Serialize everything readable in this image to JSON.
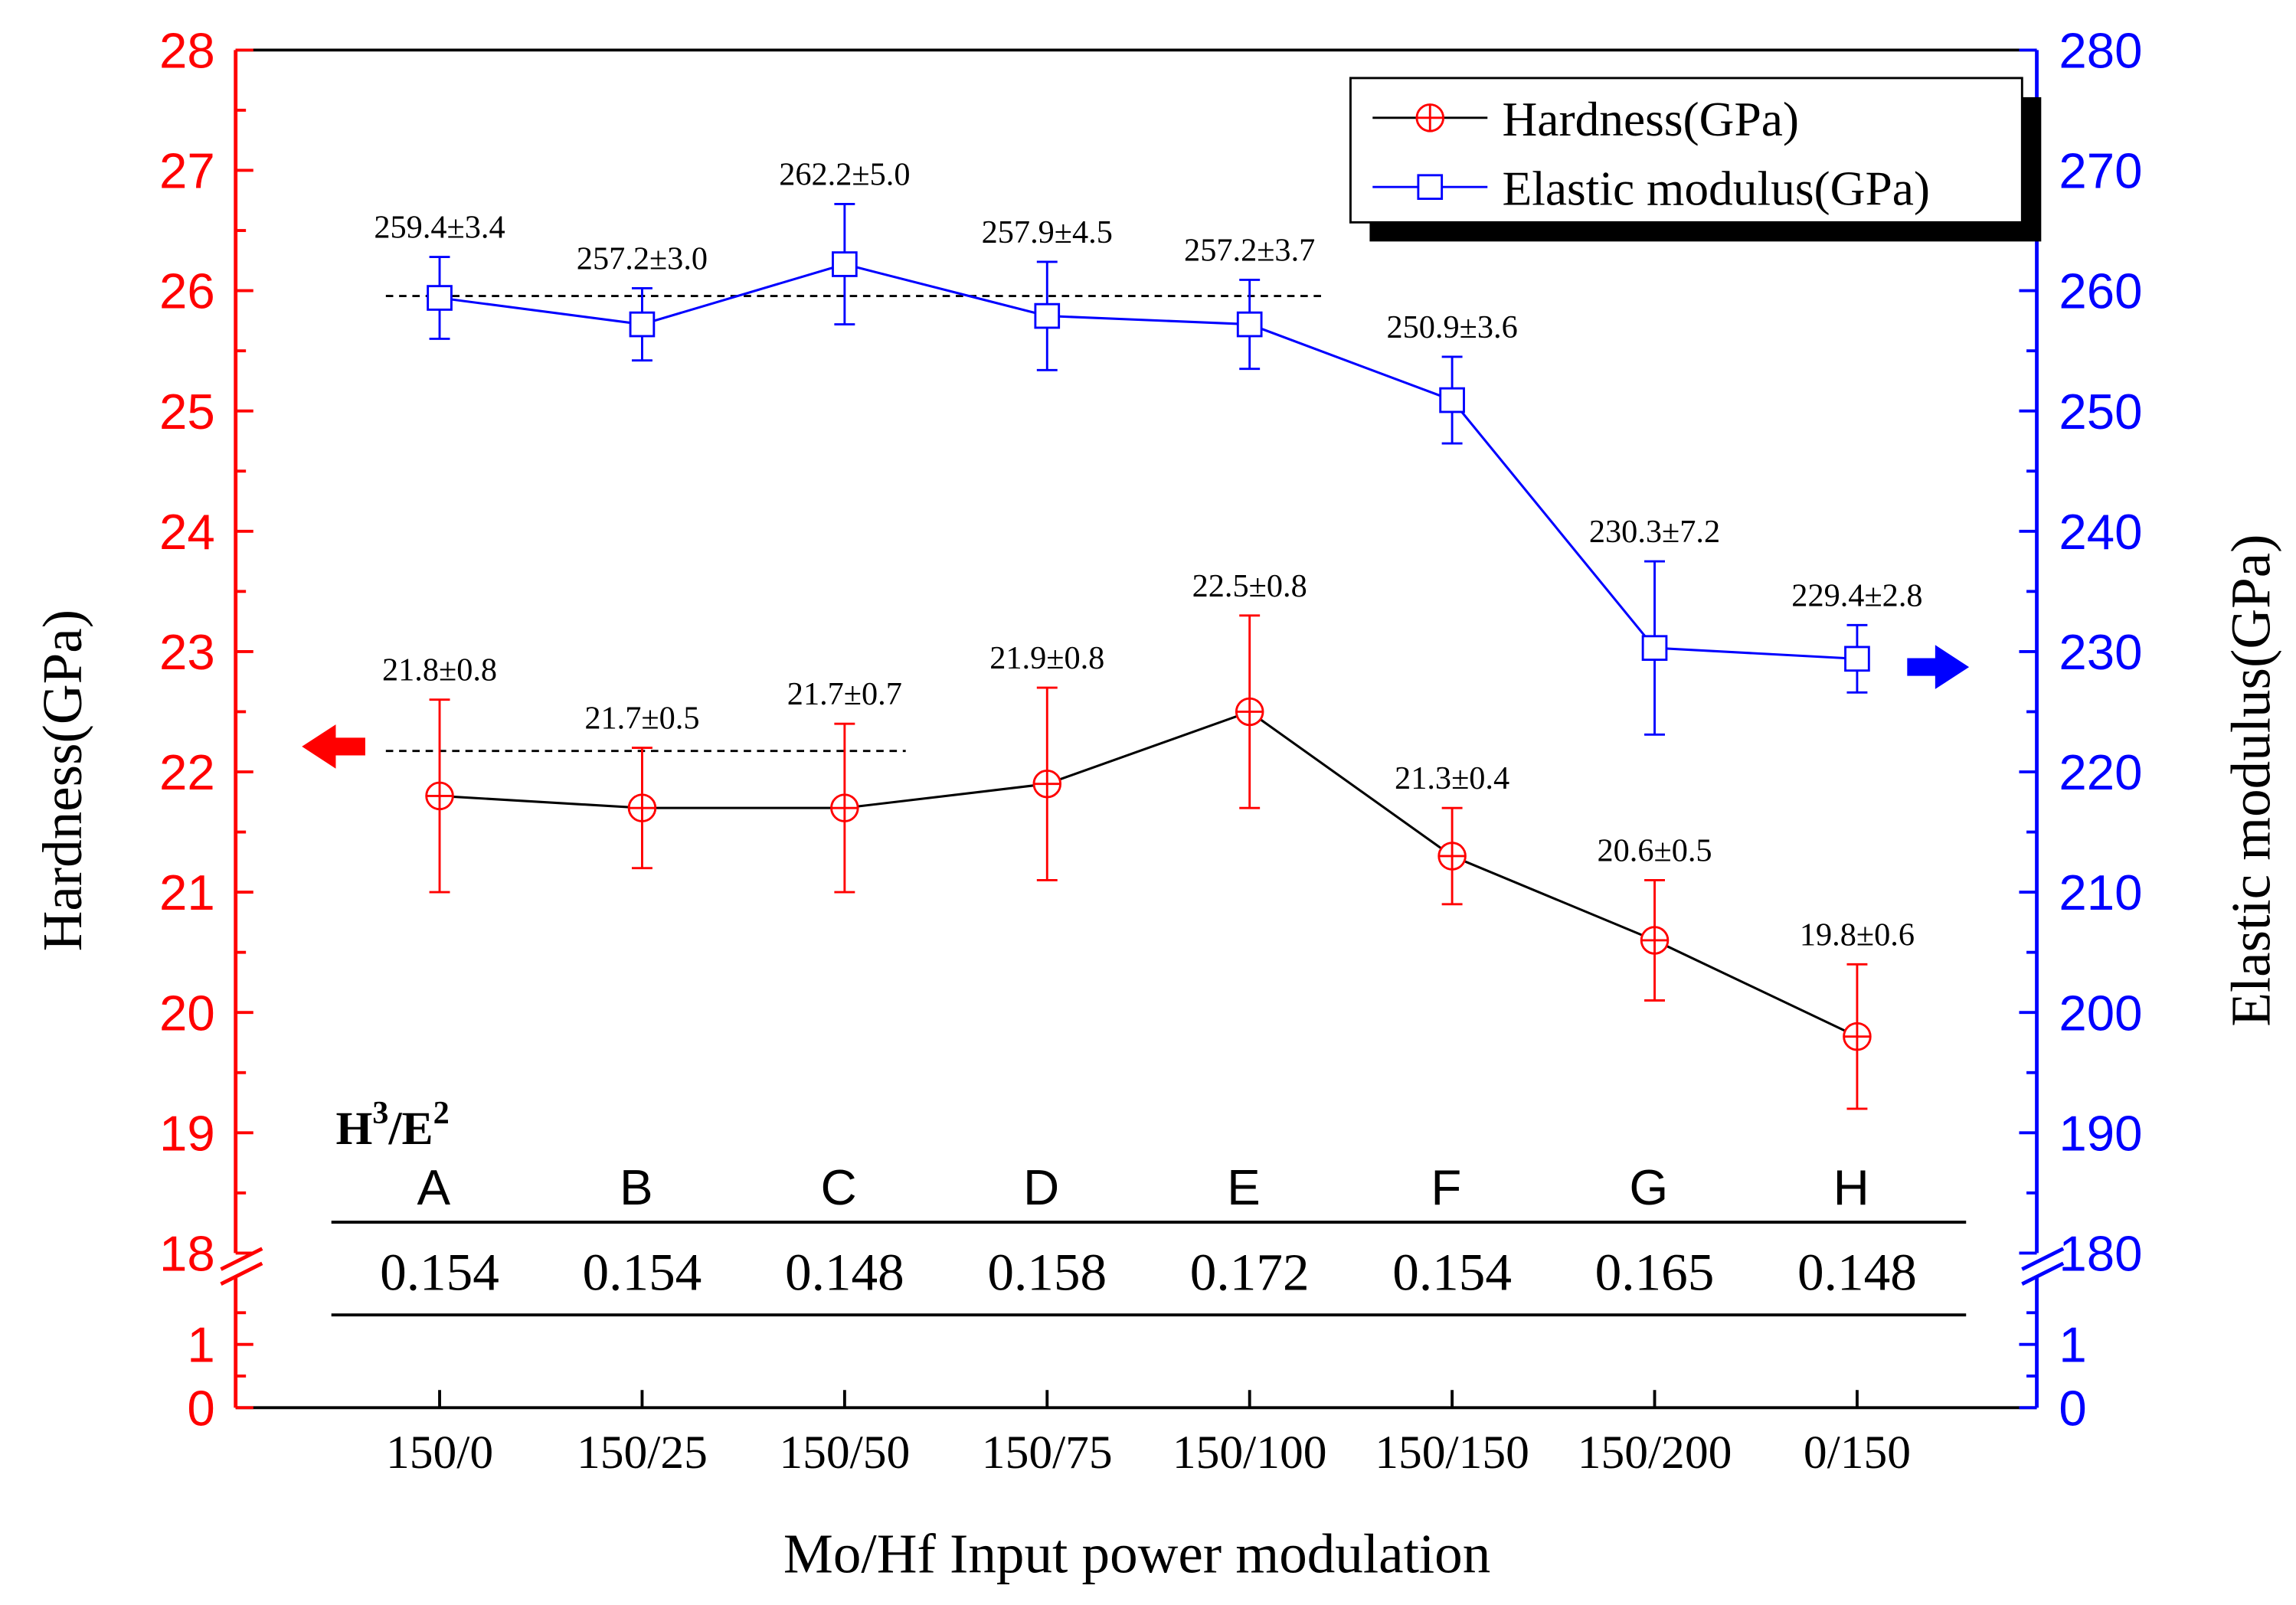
{
  "chart_data": {
    "type": "line",
    "xlabel": "Mo/Hf Input power modulation",
    "categories": [
      "150/0",
      "150/25",
      "150/50",
      "150/75",
      "150/100",
      "150/150",
      "150/200",
      "0/150"
    ],
    "left_axis": {
      "label": "Hardness(GPa)",
      "color": "#ff0000",
      "range": [
        18,
        28
      ],
      "ticks": [
        "18",
        "19",
        "20",
        "21",
        "22",
        "23",
        "24",
        "25",
        "26",
        "27",
        "28"
      ],
      "break_ticks": [
        "0",
        "1"
      ]
    },
    "right_axis": {
      "label": "Elastic modulus(GPa)",
      "color": "#0000ff",
      "range": [
        180,
        280
      ],
      "ticks": [
        "180",
        "190",
        "200",
        "210",
        "220",
        "230",
        "240",
        "250",
        "260",
        "270",
        "280"
      ],
      "break_ticks": [
        "0",
        "1"
      ]
    },
    "series": [
      {
        "name": "Hardness(GPa)",
        "axis": "left",
        "line_color": "#000000",
        "marker_color": "#ff0000",
        "marker": "circle-plus",
        "values": [
          21.8,
          21.7,
          21.7,
          21.9,
          22.5,
          21.3,
          20.6,
          19.8
        ],
        "errors": [
          0.8,
          0.5,
          0.7,
          0.8,
          0.8,
          0.4,
          0.5,
          0.6
        ],
        "labels": [
          "21.8±0.8",
          "21.7±0.5",
          "21.7±0.7",
          "21.9±0.8",
          "22.5±0.8",
          "21.3±0.4",
          "20.6±0.5",
          "19.8±0.6"
        ]
      },
      {
        "name": "Elastic modulus(GPa)",
        "axis": "right",
        "line_color": "#0000ff",
        "marker_color": "#0000ff",
        "marker": "square",
        "values": [
          259.4,
          257.2,
          262.2,
          257.9,
          257.2,
          250.9,
          230.3,
          229.4
        ],
        "errors": [
          3.4,
          3.0,
          5.0,
          4.5,
          3.7,
          3.6,
          7.2,
          2.8
        ],
        "labels": [
          "259.4±3.4",
          "257.2±3.0",
          "262.2±5.0",
          "257.9±4.5",
          "257.2±3.7",
          "250.9±3.6",
          "230.3±7.2",
          "229.4±2.8"
        ]
      }
    ],
    "legend_position": "top-right",
    "inset_table": {
      "title_base": "H",
      "title_sup1": "3",
      "title_mid": "/E",
      "title_sup2": "2",
      "headers": [
        "A",
        "B",
        "C",
        "D",
        "E",
        "F",
        "G",
        "H"
      ],
      "values": [
        "0.154",
        "0.154",
        "0.148",
        "0.158",
        "0.172",
        "0.154",
        "0.165",
        "0.148"
      ]
    }
  }
}
